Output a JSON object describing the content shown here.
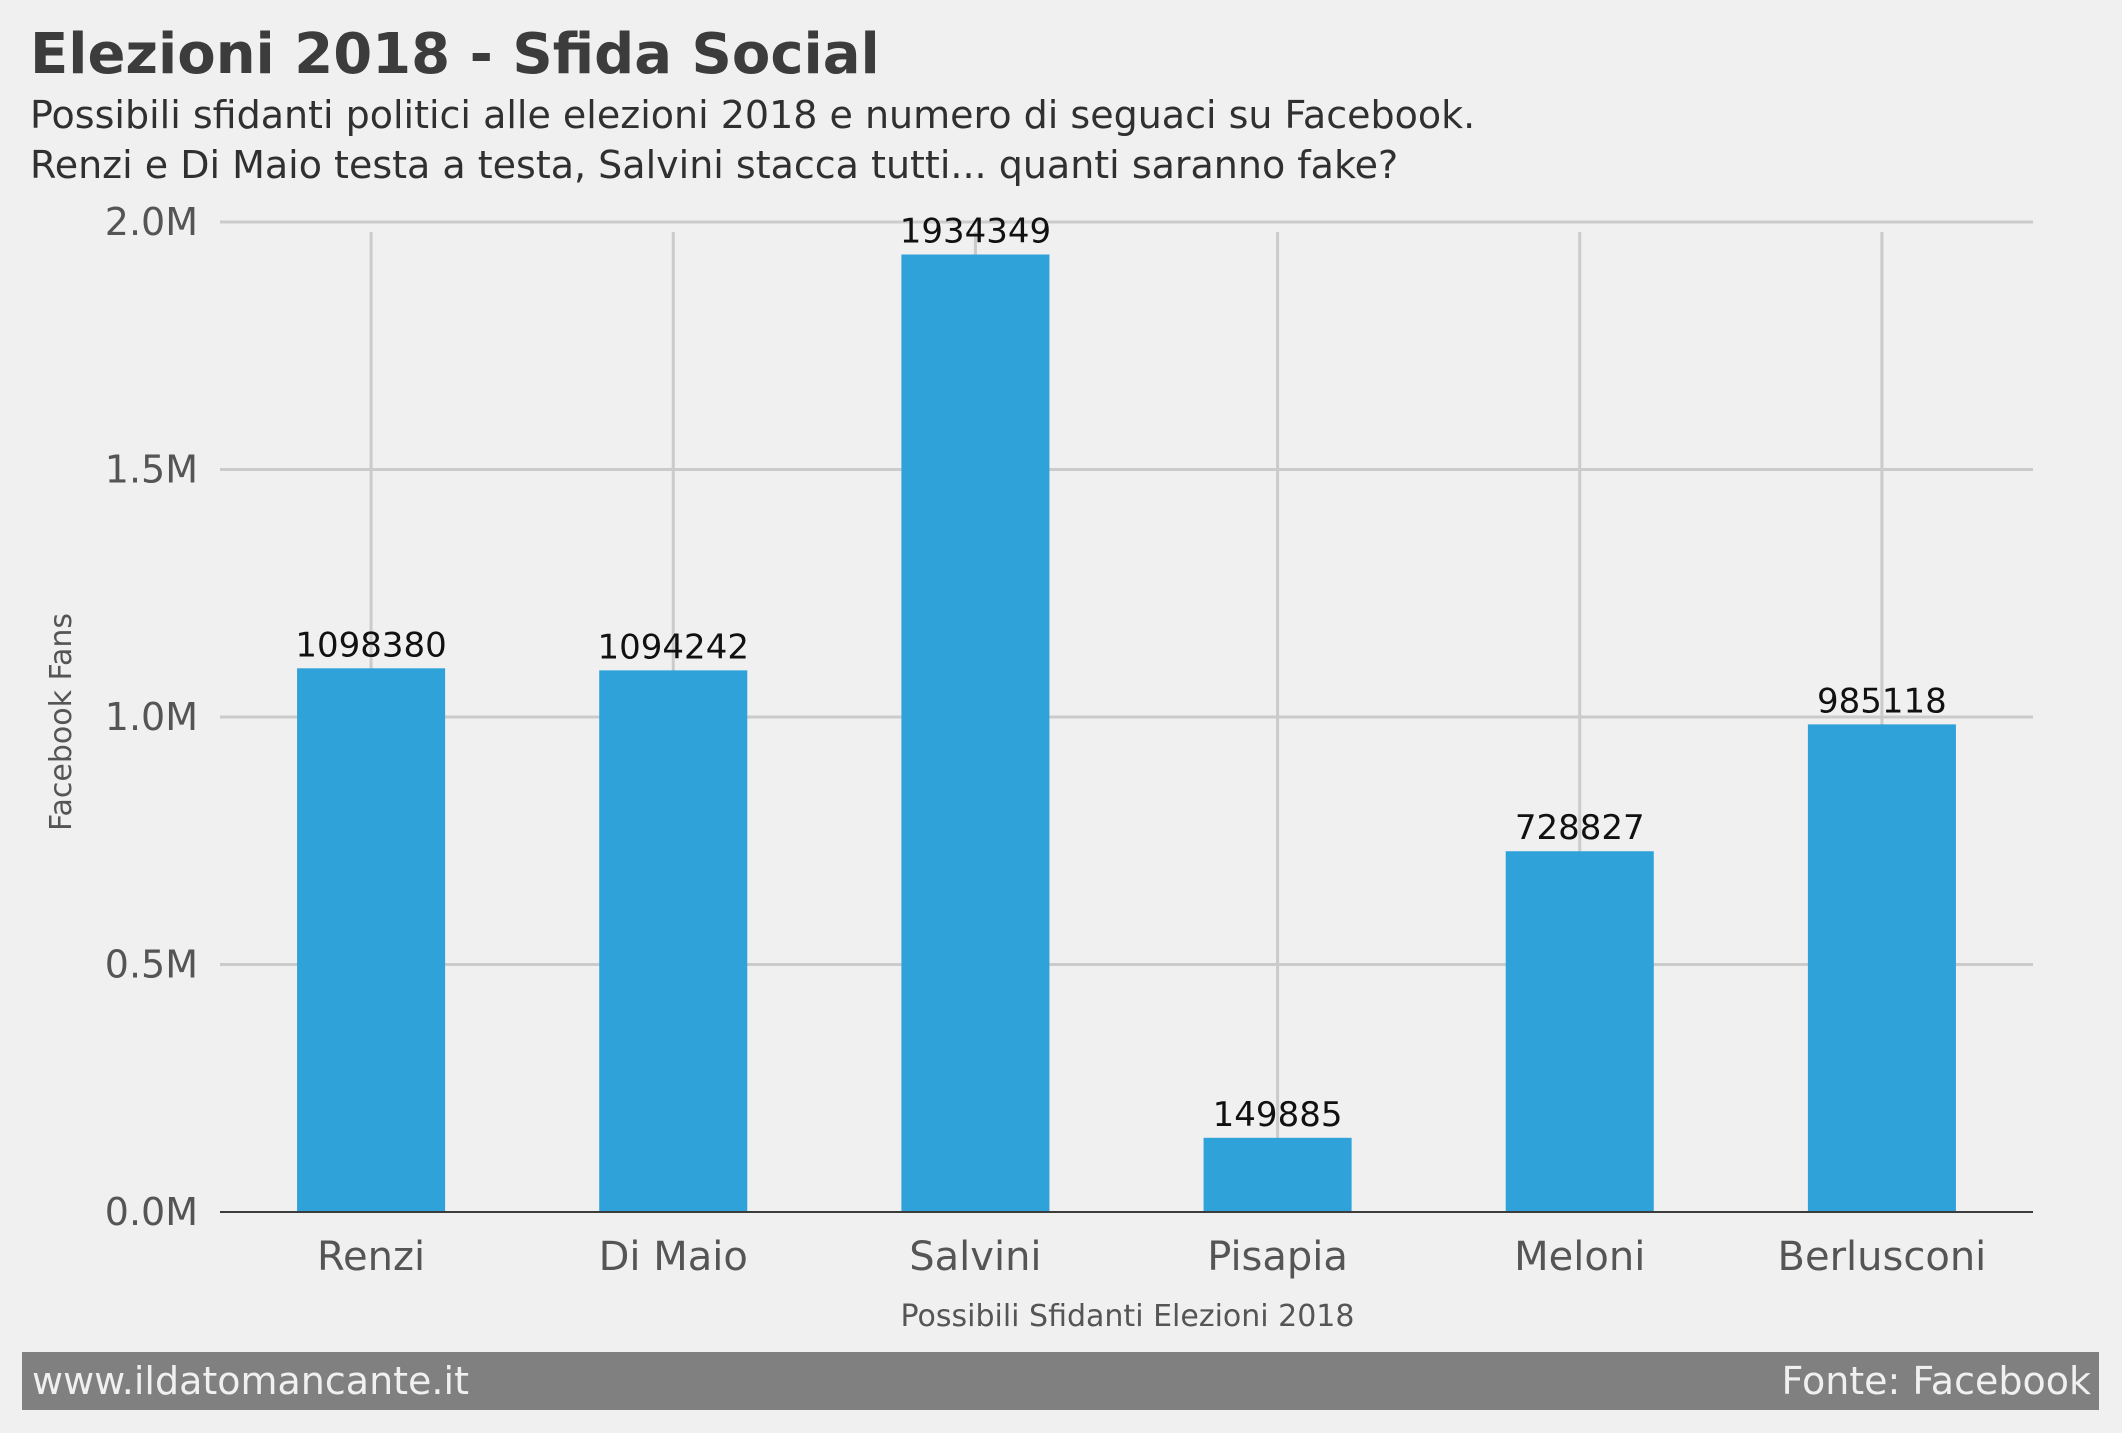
{
  "header": {
    "title": "Elezioni 2018 - Sfida Social",
    "subtitle_line1": "Possibili sfidanti politici alle elezioni 2018 e numero di seguaci su Facebook.",
    "subtitle_line2": "Renzi e Di Maio testa a testa, Salvini stacca tutti... quanti saranno fake?"
  },
  "footer": {
    "left": "www.ildatomancante.it",
    "right": "Fonte: Facebook"
  },
  "colors": {
    "bar": "#30a2da",
    "background": "#f0f0f0",
    "grid": "#cbcbcb",
    "footer_band": "#808080"
  },
  "chart_data": {
    "type": "bar",
    "categories": [
      "Renzi",
      "Di Maio",
      "Salvini",
      "Pisapia",
      "Meloni",
      "Berlusconi"
    ],
    "values": [
      1098380,
      1094242,
      1934349,
      149885,
      728827,
      985118
    ],
    "data_labels": [
      "1098380",
      "1094242",
      "1934349",
      "149885",
      "728827",
      "985118"
    ],
    "xlabel": "Possibili Sfidanti Elezioni 2018",
    "ylabel": "Facebook Fans",
    "ylim": [
      0,
      2000000
    ],
    "yticks": [
      0,
      500000,
      1000000,
      1500000,
      2000000
    ],
    "ytick_labels": [
      "0.0M",
      "0.5M",
      "1.0M",
      "1.5M",
      "2.0M"
    ],
    "grid": true,
    "legend": "none"
  }
}
